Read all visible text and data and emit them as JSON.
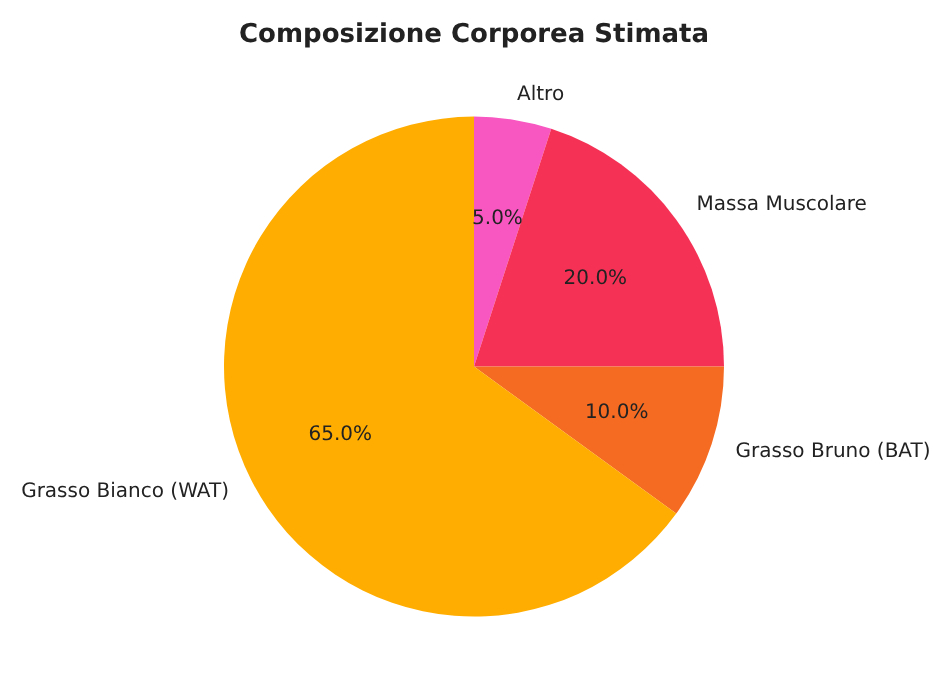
{
  "chart_data": {
    "type": "pie",
    "title": "Composizione Corporea Stimata",
    "categories": [
      "Altro",
      "Massa Muscolare",
      "Grasso Bruno (BAT)",
      "Grasso Bianco (WAT)"
    ],
    "values": [
      5,
      20,
      10,
      65
    ],
    "value_labels": [
      "5.0%",
      "20.0%",
      "10.0%",
      "65.0%"
    ],
    "colors": [
      "#f857c2",
      "#f53255",
      "#f56b22",
      "#ffad00"
    ],
    "legend": false
  }
}
